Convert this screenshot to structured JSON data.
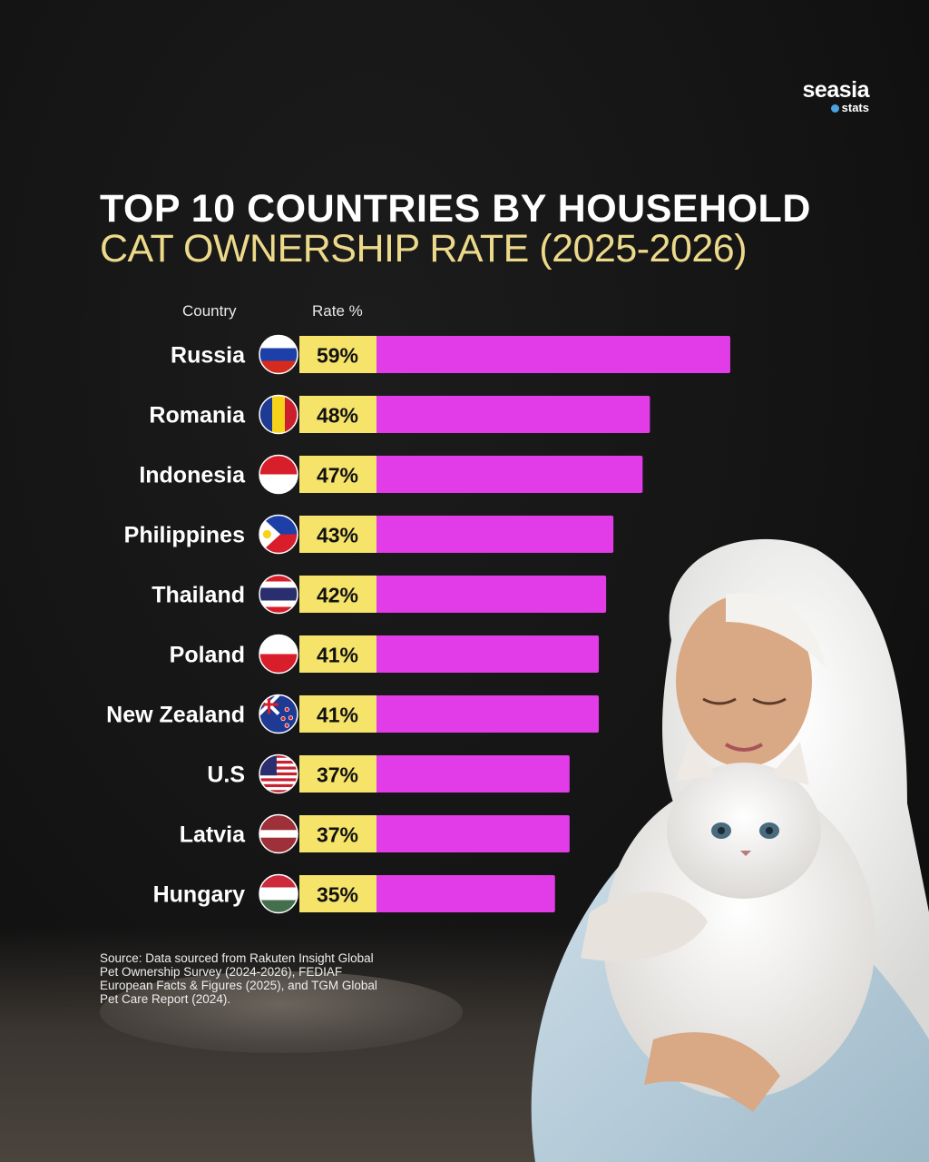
{
  "brand": {
    "name": "seasia",
    "sub": "stats"
  },
  "title_line1": "TOP 10 COUNTRIES BY HOUSEHOLD",
  "title_line2": "CAT OWNERSHIP RATE (2025-2026)",
  "column_headers": {
    "country": "Country",
    "rate": "Rate %"
  },
  "colors": {
    "bar": "#e23ce8",
    "label_bg": "#f5e36a",
    "title_accent": "#ecd98a",
    "background": "#141414"
  },
  "chart_data": {
    "type": "bar",
    "orientation": "horizontal",
    "categories": [
      "Russia",
      "Romania",
      "Indonesia",
      "Philippines",
      "Thailand",
      "Poland",
      "New Zealand",
      "U.S",
      "Latvia",
      "Hungary"
    ],
    "values": [
      59,
      48,
      47,
      43,
      42,
      41,
      41,
      37,
      37,
      35
    ],
    "value_labels": [
      "59%",
      "48%",
      "47%",
      "43%",
      "42%",
      "41%",
      "41%",
      "37%",
      "37%",
      "35%"
    ],
    "flags": [
      "russia-flag-icon",
      "romania-flag-icon",
      "indonesia-flag-icon",
      "philippines-flag-icon",
      "thailand-flag-icon",
      "poland-flag-icon",
      "new-zealand-flag-icon",
      "us-flag-icon",
      "latvia-flag-icon",
      "hungary-flag-icon"
    ],
    "title": "TOP 10 COUNTRIES BY HOUSEHOLD CAT OWNERSHIP RATE (2025-2026)",
    "xlabel": "Rate %",
    "ylabel": "Country",
    "grid": false
  },
  "source": "Source: Data sourced from Rakuten Insight Global Pet Ownership Survey (2024-2026), FEDIAF European Facts & Figures (2025), and TGM Global Pet Care Report (2024)."
}
